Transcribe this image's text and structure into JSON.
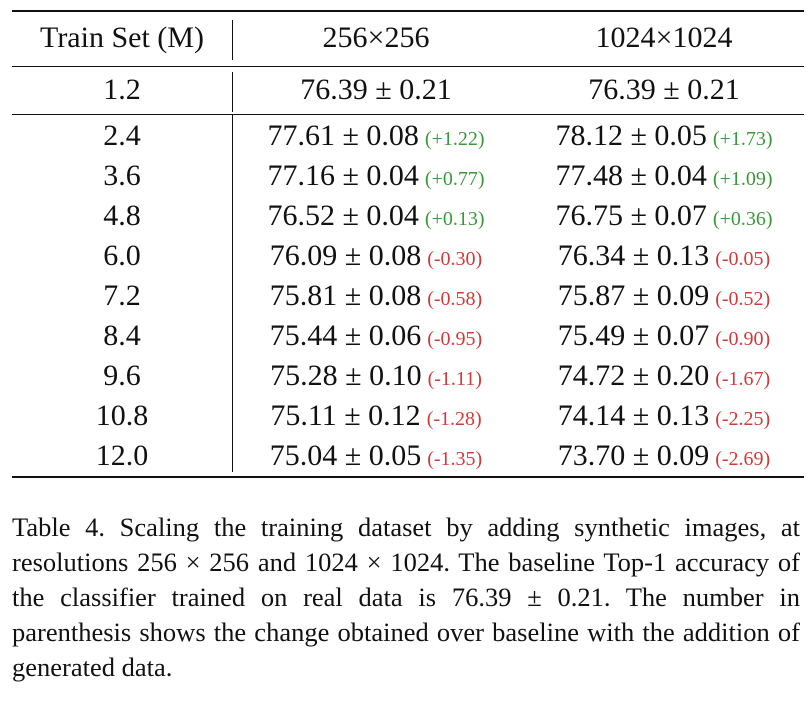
{
  "headers": [
    "Train Set (M)",
    "256×256",
    "1024×1024"
  ],
  "baseline": {
    "train": "1.2",
    "r256": "76.39 ± 0.21",
    "r1024": "76.39 ± 0.21"
  },
  "rows": [
    {
      "train": "2.4",
      "r256": "77.61 ± 0.08",
      "d256": "(+1.22)",
      "s256": "pos",
      "r1024": "78.12 ± 0.05",
      "d1024": "(+1.73)",
      "s1024": "pos"
    },
    {
      "train": "3.6",
      "r256": "77.16 ± 0.04",
      "d256": "(+0.77)",
      "s256": "pos",
      "r1024": "77.48 ± 0.04",
      "d1024": "(+1.09)",
      "s1024": "pos"
    },
    {
      "train": "4.8",
      "r256": "76.52 ± 0.04",
      "d256": "(+0.13)",
      "s256": "pos",
      "r1024": "76.75 ± 0.07",
      "d1024": "(+0.36)",
      "s1024": "pos"
    },
    {
      "train": "6.0",
      "r256": "76.09 ± 0.08",
      "d256": "(-0.30)",
      "s256": "neg",
      "r1024": "76.34 ± 0.13",
      "d1024": "(-0.05)",
      "s1024": "neg"
    },
    {
      "train": "7.2",
      "r256": "75.81 ± 0.08",
      "d256": "(-0.58)",
      "s256": "neg",
      "r1024": "75.87 ± 0.09",
      "d1024": "(-0.52)",
      "s1024": "neg"
    },
    {
      "train": "8.4",
      "r256": "75.44 ± 0.06",
      "d256": "(-0.95)",
      "s256": "neg",
      "r1024": "75.49 ± 0.07",
      "d1024": "(-0.90)",
      "s1024": "neg"
    },
    {
      "train": "9.6",
      "r256": "75.28 ± 0.10",
      "d256": "(-1.11)",
      "s256": "neg",
      "r1024": "74.72 ± 0.20",
      "d1024": "(-1.67)",
      "s1024": "neg"
    },
    {
      "train": "10.8",
      "r256": "75.11 ± 0.12",
      "d256": "(-1.28)",
      "s256": "neg",
      "r1024": "74.14 ± 0.13",
      "d1024": "(-2.25)",
      "s1024": "neg"
    },
    {
      "train": "12.0",
      "r256": "75.04 ± 0.05",
      "d256": "(-1.35)",
      "s256": "neg",
      "r1024": "73.70 ± 0.09",
      "d1024": "(-2.69)",
      "s1024": "neg"
    }
  ],
  "colors": {
    "positive": "#3a9a3a",
    "negative": "#d13a3a"
  },
  "caption": "Table 4. Scaling the training dataset by adding synthetic images, at resolutions 256 × 256 and 1024 × 1024. The baseline Top-1 accuracy of the classifier trained on real data is 76.39 ± 0.21. The number in parenthesis shows the change obtained over baseline with the addition of generated data."
}
